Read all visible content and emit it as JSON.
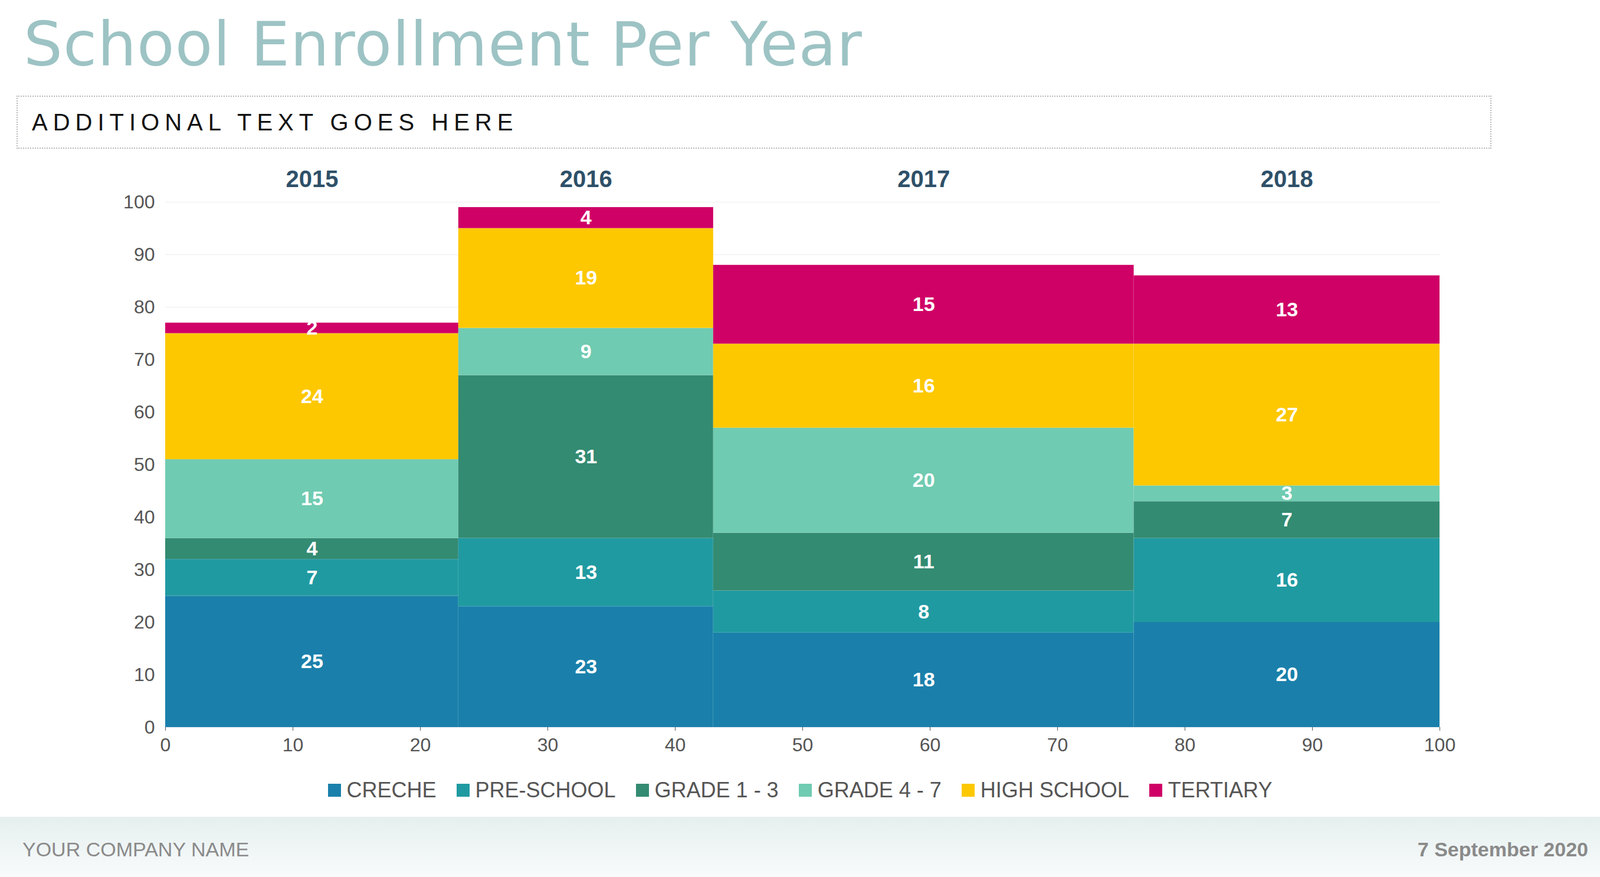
{
  "chart_data": {
    "type": "marimekko",
    "title": "School Enrollment Per Year",
    "subtitle": "ADDITIONAL TEXT GOES HERE",
    "categories": [
      "2015",
      "2016",
      "2017",
      "2018"
    ],
    "widths": [
      23,
      20,
      33,
      24
    ],
    "series": [
      {
        "name": "CRECHE",
        "color": "#1a80ab",
        "values": [
          25,
          23,
          18,
          20
        ]
      },
      {
        "name": "PRE-SCHOOL",
        "color": "#209aa1",
        "values": [
          7,
          13,
          8,
          16
        ]
      },
      {
        "name": "GRADE 1 - 3",
        "color": "#338b72",
        "values": [
          4,
          31,
          11,
          7
        ]
      },
      {
        "name": "GRADE 4 - 7",
        "color": "#6fcbb1",
        "values": [
          15,
          9,
          20,
          3
        ]
      },
      {
        "name": "HIGH SCHOOL",
        "color": "#fdc800",
        "values": [
          24,
          19,
          16,
          27
        ]
      },
      {
        "name": "TERTIARY",
        "color": "#cf0066",
        "values": [
          2,
          4,
          15,
          13
        ]
      }
    ],
    "xlim": [
      0,
      100
    ],
    "xticks": [
      0,
      10,
      20,
      30,
      40,
      50,
      60,
      70,
      80,
      90,
      100
    ],
    "ylim": [
      0,
      100
    ],
    "yticks": [
      0,
      10,
      20,
      30,
      40,
      50,
      60,
      70,
      80,
      90,
      100
    ],
    "grid": true,
    "stacked": true,
    "data_labels": true,
    "legend": "bottom"
  },
  "footer": {
    "left": "YOUR COMPANY NAME",
    "right": "7 September 2020"
  }
}
